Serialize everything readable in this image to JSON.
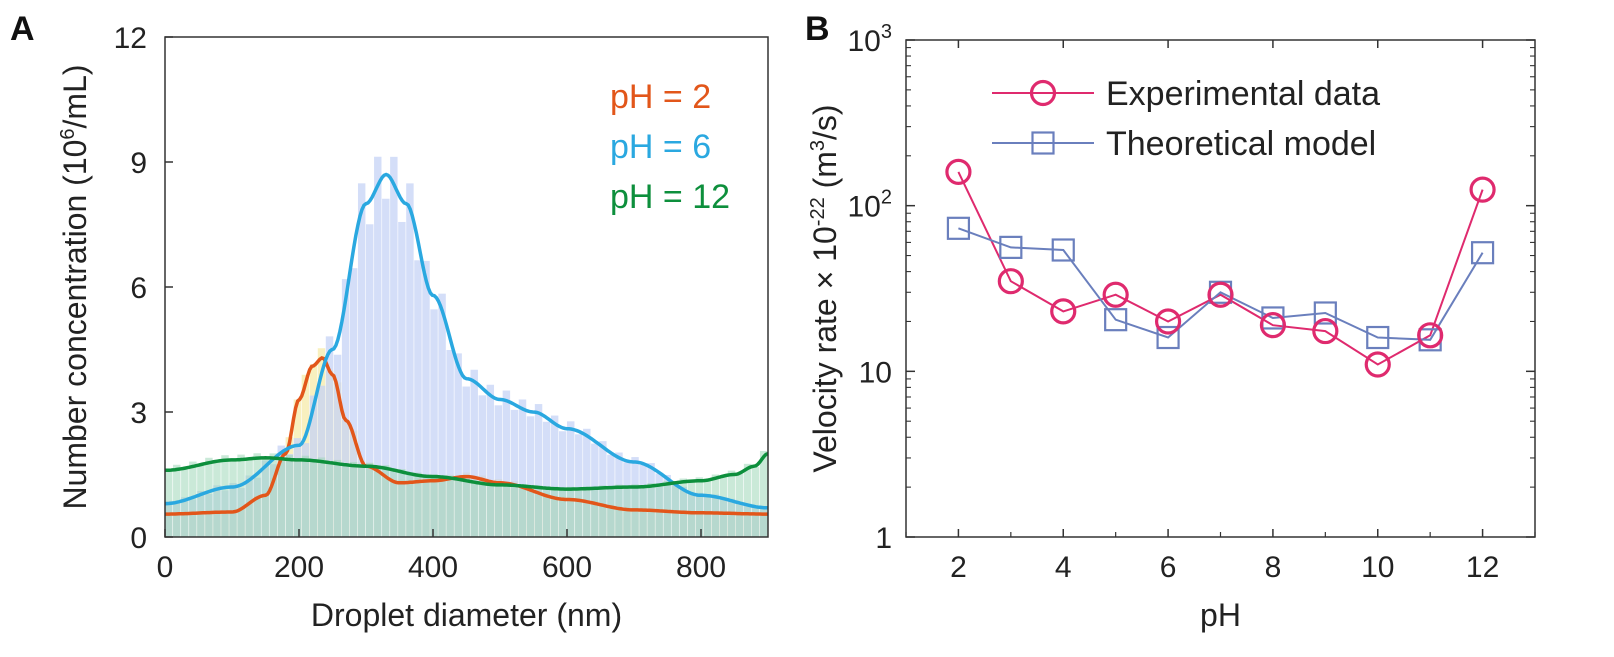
{
  "panel_labels": {
    "a": "A",
    "b": "B"
  },
  "chart_data": [
    {
      "panel": "A",
      "type": "area",
      "xlabel": "Droplet diameter (nm)",
      "ylabel": {
        "prefix": "Number concentration (10",
        "sup": "6",
        "suffix": "/mL)"
      },
      "xlim": [
        0,
        900
      ],
      "ylim": [
        0,
        12
      ],
      "xticks": [
        0,
        200,
        400,
        600,
        800
      ],
      "yticks": [
        0,
        3,
        6,
        9,
        12
      ],
      "grid": false,
      "legend_placement": "top-right",
      "series": [
        {
          "name": "pH = 2",
          "color": "#e2561a",
          "hist_color": "#f2e48a",
          "x": [
            0,
            100,
            150,
            180,
            200,
            220,
            235,
            250,
            270,
            300,
            350,
            400,
            450,
            500,
            600,
            700,
            800,
            900
          ],
          "y": [
            0.55,
            0.6,
            1.0,
            2.0,
            3.3,
            4.1,
            4.3,
            3.9,
            2.8,
            1.7,
            1.3,
            1.35,
            1.45,
            1.3,
            0.9,
            0.65,
            0.58,
            0.55
          ]
        },
        {
          "name": "pH = 6",
          "color": "#2aa8e0",
          "hist_color": "#c5d3f5",
          "x": [
            0,
            100,
            200,
            250,
            300,
            330,
            360,
            400,
            450,
            500,
            550,
            600,
            700,
            800,
            900
          ],
          "y": [
            0.8,
            1.2,
            2.2,
            4.5,
            8.0,
            8.7,
            8.0,
            5.8,
            3.8,
            3.3,
            3.0,
            2.6,
            1.8,
            1.0,
            0.7
          ]
        },
        {
          "name": "pH = 12",
          "color": "#0d8f3c",
          "hist_color": "#9fd7b8",
          "x": [
            0,
            100,
            150,
            200,
            300,
            400,
            500,
            600,
            700,
            800,
            850,
            880,
            900
          ],
          "y": [
            1.6,
            1.85,
            1.9,
            1.85,
            1.7,
            1.45,
            1.25,
            1.15,
            1.2,
            1.35,
            1.5,
            1.7,
            2.0
          ]
        }
      ]
    },
    {
      "panel": "B",
      "type": "line",
      "xlabel": "pH",
      "ylabel": {
        "prefix": "Velocity rate × 10",
        "sup1": "-22",
        "mid": " (m",
        "sup2": "3",
        "suffix": "/s)"
      },
      "yscale": "log",
      "xlim": [
        1,
        13
      ],
      "ylim": [
        1,
        1000
      ],
      "xticks": [
        2,
        4,
        6,
        8,
        10,
        12
      ],
      "yticks": [
        {
          "v": 1,
          "label": "1"
        },
        {
          "v": 10,
          "label": "10"
        },
        {
          "v": 100,
          "base": "10",
          "exp": "2"
        },
        {
          "v": 1000,
          "base": "10",
          "exp": "3"
        }
      ],
      "grid": false,
      "legend_placement": "top-left",
      "series": [
        {
          "name": "Experimental data",
          "marker": "circle",
          "color": "#df2a6e",
          "x": [
            2,
            3,
            4,
            5,
            6,
            7,
            8,
            9,
            10,
            11,
            12
          ],
          "y": [
            160,
            35,
            23,
            29,
            20,
            29,
            19,
            17.5,
            11,
            16.5,
            125
          ]
        },
        {
          "name": "Theoretical model",
          "marker": "square",
          "color": "#6a7fbd",
          "x": [
            2,
            3,
            4,
            5,
            6,
            7,
            8,
            9,
            10,
            11,
            12
          ],
          "y": [
            73,
            56,
            54,
            20.5,
            16,
            30,
            21,
            22.5,
            16,
            15.5,
            52
          ]
        }
      ]
    }
  ]
}
